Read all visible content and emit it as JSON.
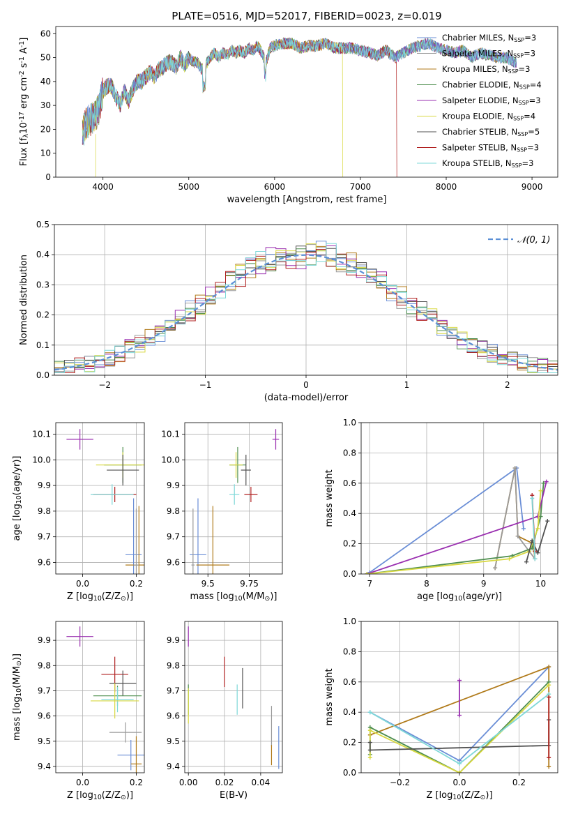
{
  "title": "PLATE=0516, MJD=52017, FIBERID=0023, z=0.019",
  "models": [
    {
      "name": "Chabrier MILES, N$_{SSP}$=3",
      "label_main": "Chabrier MILES, N",
      "label_tail": "=3",
      "color": "#6a8ed6"
    },
    {
      "name": "Salpeter MILES, N$_{SSP}$=3",
      "label_main": "Salpeter MILES, N",
      "label_tail": "=3",
      "color": "#9a9a9a"
    },
    {
      "name": "Kroupa MILES, N$_{SSP}$=3",
      "label_main": "Kroupa MILES, N",
      "label_tail": "=3",
      "color": "#b07a1a"
    },
    {
      "name": "Chabrier ELODIE, N$_{SSP}$=4",
      "label_main": "Chabrier ELODIE, N",
      "label_tail": "=4",
      "color": "#4f8f4f"
    },
    {
      "name": "Salpeter ELODIE, N$_{SSP}$=3",
      "label_main": "Salpeter ELODIE, N",
      "label_tail": "=3",
      "color": "#9a2fb0"
    },
    {
      "name": "Kroupa ELODIE, N$_{SSP}$=4",
      "label_main": "Kroupa ELODIE, N",
      "label_tail": "=4",
      "color": "#d8d840"
    },
    {
      "name": "Chabrier STELIB, N$_{SSP}$=5",
      "label_main": "Chabrier STELIB, N",
      "label_tail": "=5",
      "color": "#505050"
    },
    {
      "name": "Salpeter STELIB, N$_{SSP}$=3",
      "label_main": "Salpeter STELIB, N",
      "label_tail": "=3",
      "color": "#b02020"
    },
    {
      "name": "Kroupa STELIB, N$_{SSP}$=3",
      "label_main": "Kroupa STELIB, N",
      "label_tail": "=3",
      "color": "#7fd8d8"
    }
  ],
  "legend_subscript": "SSP",
  "chart_data": [
    {
      "id": "spectrum",
      "type": "line",
      "xlabel": "wavelength [Angstrom, rest frame]",
      "ylabel": "Flux [f$_\\lambda$10$^{-17}$ erg cm$^{-2}$ s$^{-1}$ A$^{-1}$]",
      "xlim": [
        3450,
        9300
      ],
      "ylim": [
        0,
        63
      ],
      "xticks": [
        4000,
        5000,
        6000,
        7000,
        8000,
        9000
      ],
      "yticks": [
        0,
        10,
        20,
        30,
        40,
        50,
        60
      ],
      "legend_position": "upper-right",
      "x": [
        3760,
        3800,
        3850,
        3900,
        3950,
        4000,
        4050,
        4100,
        4150,
        4200,
        4250,
        4300,
        4350,
        4400,
        4450,
        4500,
        4550,
        4600,
        4650,
        4700,
        4750,
        4800,
        4850,
        4900,
        4950,
        5000,
        5050,
        5100,
        5150,
        5200,
        5250,
        5300,
        5350,
        5400,
        5450,
        5500,
        5550,
        5600,
        5650,
        5700,
        5750,
        5800,
        5850,
        5900,
        5950,
        6000,
        6100,
        6200,
        6300,
        6400,
        6500,
        6600,
        6700,
        6800,
        6900,
        7000,
        7100,
        7200,
        7300,
        7400,
        7500,
        7600,
        7700,
        7800,
        7900,
        8000,
        8100,
        8200,
        8300,
        8400,
        8500,
        8600,
        8700,
        8800
      ],
      "y": [
        18,
        22,
        24,
        25,
        28,
        36,
        38,
        38,
        34,
        30,
        36,
        32,
        37,
        40,
        40,
        42,
        44,
        42,
        45,
        46,
        48,
        48,
        46,
        50,
        47,
        50,
        48,
        48,
        45,
        47,
        50,
        52,
        50,
        52,
        51,
        53,
        52,
        53,
        52,
        54,
        53,
        55,
        52,
        48,
        54,
        55,
        56,
        56,
        54,
        55,
        55,
        56,
        54,
        54,
        54,
        53,
        52,
        51,
        53,
        50,
        52,
        54,
        55,
        56,
        54,
        53,
        52,
        53,
        50,
        52,
        51,
        50,
        50,
        48
      ]
    },
    {
      "id": "residual-histogram",
      "type": "bar",
      "xlabel": "(data-model)/error",
      "ylabel": "Normed distribution",
      "xlim": [
        -2.5,
        2.5
      ],
      "ylim": [
        0,
        0.5
      ],
      "xticks": [
        -2,
        -1,
        0,
        1,
        2
      ],
      "yticks": [
        0.0,
        0.1,
        0.2,
        0.3,
        0.4,
        0.5
      ],
      "bin_width": 0.1,
      "legend": "$\\mathcal{N}(0,1)$",
      "legend_position": "upper-right",
      "reference_curve": "N(0,1)"
    },
    {
      "id": "age-vs-Z",
      "type": "scatter",
      "xlabel": "Z [log$_{10}$(Z/Z$_\\odot$)]",
      "ylabel": "age  [log$_{10}$(age/yr)]",
      "xlim": [
        -0.1,
        0.23
      ],
      "ylim": [
        9.555,
        10.145
      ],
      "xticks": [
        0.0,
        0.2
      ],
      "yticks": [
        9.6,
        9.7,
        9.8,
        9.9,
        10.0,
        10.1
      ],
      "points": [
        {
          "x": -0.01,
          "y": 10.08,
          "xerr": 0.05,
          "yerr": 0.04,
          "model": 4
        },
        {
          "x": 0.15,
          "y": 9.98,
          "xerr": 0.07,
          "yerr": 0.07,
          "model": 3
        },
        {
          "x": 0.15,
          "y": 9.98,
          "xerr": 0.1,
          "yerr": 0.05,
          "model": 5
        },
        {
          "x": 0.15,
          "y": 9.96,
          "xerr": 0.06,
          "yerr": 0.06,
          "model": 6
        },
        {
          "x": 0.12,
          "y": 9.865,
          "xerr": 0.08,
          "yerr": 0.03,
          "model": 7
        },
        {
          "x": 0.11,
          "y": 9.865,
          "xerr": 0.08,
          "yerr": 0.04,
          "model": 8
        },
        {
          "x": 0.19,
          "y": 9.63,
          "xerr": 0.03,
          "yerr": 0.22,
          "model": 0
        },
        {
          "x": 0.21,
          "y": 9.59,
          "xerr": 0.05,
          "yerr": 0.23,
          "model": 2
        },
        {
          "x": 0.2,
          "y": 9.59,
          "xerr": 0.01,
          "yerr": 0.22,
          "model": 1
        }
      ]
    },
    {
      "id": "age-vs-mass",
      "type": "scatter",
      "xlabel": "mass [log$_{10}$(M/M$_\\odot$)]",
      "ylabel": "",
      "xlim": [
        9.36,
        9.95
      ],
      "ylim": [
        9.555,
        10.145
      ],
      "xticks": [
        9.5,
        9.75
      ],
      "yticks": [
        9.6,
        9.7,
        9.8,
        9.9,
        10.0,
        10.1
      ],
      "points": [
        {
          "x": 9.91,
          "y": 10.08,
          "xerr": 0.02,
          "yerr": 0.04,
          "model": 4
        },
        {
          "x": 9.68,
          "y": 9.98,
          "xerr": 0.05,
          "yerr": 0.07,
          "model": 3
        },
        {
          "x": 9.67,
          "y": 9.98,
          "xerr": 0.04,
          "yerr": 0.05,
          "model": 5
        },
        {
          "x": 9.73,
          "y": 9.96,
          "xerr": 0.03,
          "yerr": 0.06,
          "model": 6
        },
        {
          "x": 9.76,
          "y": 9.865,
          "xerr": 0.04,
          "yerr": 0.03,
          "model": 7
        },
        {
          "x": 9.66,
          "y": 9.865,
          "xerr": 0.03,
          "yerr": 0.04,
          "model": 8
        },
        {
          "x": 9.44,
          "y": 9.63,
          "xerr": 0.05,
          "yerr": 0.22,
          "model": 0
        },
        {
          "x": 9.53,
          "y": 9.59,
          "xerr": 0.1,
          "yerr": 0.23,
          "model": 2
        },
        {
          "x": 9.41,
          "y": 9.59,
          "xerr": 0.01,
          "yerr": 0.22,
          "model": 1
        }
      ]
    },
    {
      "id": "mass-weight-vs-age",
      "type": "line",
      "xlabel": "age  [log$_{10}$(age/yr)]",
      "ylabel": "mass weight",
      "xlim": [
        6.85,
        10.3
      ],
      "ylim": [
        0.0,
        1.0
      ],
      "xticks": [
        7,
        8,
        9,
        10
      ],
      "yticks": [
        0.0,
        0.2,
        0.4,
        0.6,
        0.8,
        1.0
      ],
      "series": [
        {
          "model": 0,
          "x": [
            7.0,
            9.58,
            9.7
          ],
          "y": [
            0.01,
            0.7,
            0.3
          ]
        },
        {
          "model": 2,
          "x": [
            9.2,
            9.55,
            9.6,
            9.87,
            9.9
          ],
          "y": [
            0.04,
            0.7,
            0.25,
            0.2,
            0.1
          ]
        },
        {
          "model": 1,
          "x": [
            9.2,
            9.55,
            9.6,
            9.9
          ],
          "y": [
            0.04,
            0.7,
            0.25,
            0.1
          ]
        },
        {
          "model": 3,
          "x": [
            6.95,
            9.5,
            9.85,
            10.0,
            10.05
          ],
          "y": [
            0.0,
            0.12,
            0.17,
            0.38,
            0.6
          ]
        },
        {
          "model": 4,
          "x": [
            6.95,
            9.95,
            10.1
          ],
          "y": [
            0.0,
            0.38,
            0.61
          ]
        },
        {
          "model": 5,
          "x": [
            6.95,
            9.45,
            9.8,
            9.95,
            10.0
          ],
          "y": [
            0.0,
            0.1,
            0.15,
            0.3,
            0.55
          ]
        },
        {
          "model": 6,
          "x": [
            9.75,
            9.85,
            9.95,
            10.12
          ],
          "y": [
            0.08,
            0.22,
            0.14,
            0.35
          ]
        },
        {
          "model": 7,
          "x": [
            9.85,
            9.9
          ],
          "y": [
            0.52,
            0.15
          ]
        },
        {
          "model": 8,
          "x": [
            9.85,
            9.9
          ],
          "y": [
            0.5,
            0.1
          ]
        }
      ]
    },
    {
      "id": "mass-vs-Z",
      "type": "scatter",
      "xlabel": "Z [log$_{10}$(Z/Z$_\\odot$)]",
      "ylabel": "mass [log$_{10}$(M/M$_\\odot$)]",
      "xlim": [
        -0.1,
        0.23
      ],
      "ylim": [
        9.375,
        9.975
      ],
      "xticks": [
        0.0,
        0.2
      ],
      "yticks": [
        9.4,
        9.5,
        9.6,
        9.7,
        9.8,
        9.9
      ],
      "points": [
        {
          "x": -0.01,
          "y": 9.915,
          "xerr": 0.05,
          "yerr": 0.04,
          "model": 4
        },
        {
          "x": 0.12,
          "y": 9.765,
          "xerr": 0.05,
          "yerr": 0.07,
          "model": 7
        },
        {
          "x": 0.15,
          "y": 9.73,
          "xerr": 0.05,
          "yerr": 0.05,
          "model": 6
        },
        {
          "x": 0.13,
          "y": 9.68,
          "xerr": 0.09,
          "yerr": 0.04,
          "model": 3
        },
        {
          "x": 0.13,
          "y": 9.665,
          "xerr": 0.06,
          "yerr": 0.05,
          "model": 8
        },
        {
          "x": 0.12,
          "y": 9.66,
          "xerr": 0.09,
          "yerr": 0.07,
          "model": 5
        },
        {
          "x": 0.16,
          "y": 9.535,
          "xerr": 0.06,
          "yerr": 0.04,
          "model": 1
        },
        {
          "x": 0.18,
          "y": 9.445,
          "xerr": 0.05,
          "yerr": 0.06,
          "model": 0
        },
        {
          "x": 0.2,
          "y": 9.41,
          "xerr": 0.02,
          "yerr": 0.11,
          "model": 2
        }
      ]
    },
    {
      "id": "mass-vs-EBV",
      "type": "scatter",
      "xlabel": "E(B-V)",
      "ylabel": "",
      "xlim": [
        -0.002,
        0.052
      ],
      "ylim": [
        9.375,
        9.975
      ],
      "xticks": [
        0.0,
        0.02,
        0.04
      ],
      "yticks": [
        9.4,
        9.5,
        9.6,
        9.7,
        9.8,
        9.9
      ],
      "points": [
        {
          "x": 0.0,
          "y": 9.915,
          "yerr": 0.04,
          "model": 4
        },
        {
          "x": 0.0,
          "y": 9.665,
          "yerr": 0.06,
          "model": 3
        },
        {
          "x": 0.0,
          "y": 9.64,
          "yerr": 0.07,
          "model": 5
        },
        {
          "x": 0.02,
          "y": 9.775,
          "yerr": 0.06,
          "model": 7
        },
        {
          "x": 0.03,
          "y": 9.71,
          "yerr": 0.08,
          "model": 6
        },
        {
          "x": 0.027,
          "y": 9.665,
          "yerr": 0.06,
          "model": 8
        },
        {
          "x": 0.046,
          "y": 9.56,
          "yerr": 0.08,
          "model": 1
        },
        {
          "x": 0.05,
          "y": 9.475,
          "yerr": 0.085,
          "model": 0
        },
        {
          "x": 0.046,
          "y": 9.445,
          "yerr": 0.04,
          "model": 2
        }
      ]
    },
    {
      "id": "mass-weight-vs-Z",
      "type": "line",
      "xlabel": "Z [log$_{10}$(Z/Z$_\\odot$)]",
      "ylabel": "mass weight",
      "xlim": [
        -0.33,
        0.33
      ],
      "ylim": [
        0.0,
        1.0
      ],
      "xticks": [
        -0.2,
        0.0,
        0.2
      ],
      "yticks": [
        0.0,
        0.2,
        0.4,
        0.6,
        0.8,
        1.0
      ],
      "series": [
        {
          "model": 0,
          "x": [
            -0.3,
            0.0,
            0.3
          ],
          "y": [
            0.4,
            0.08,
            0.7
          ]
        },
        {
          "model": 2,
          "x": [
            -0.3,
            0.3,
            0.3
          ],
          "y": [
            0.25,
            0.7,
            0.04
          ]
        },
        {
          "model": 4,
          "x": [
            0.0,
            0.0
          ],
          "y": [
            0.61,
            0.38
          ]
        },
        {
          "model": 3,
          "x": [
            -0.3,
            -0.3,
            0.0,
            0.3
          ],
          "y": [
            0.12,
            0.3,
            0.0,
            0.6
          ]
        },
        {
          "model": 5,
          "x": [
            -0.3,
            -0.3,
            0.0,
            0.3
          ],
          "y": [
            0.1,
            0.28,
            0.0,
            0.58
          ]
        },
        {
          "model": 6,
          "x": [
            -0.3,
            -0.3,
            0.3,
            0.3
          ],
          "y": [
            0.2,
            0.15,
            0.18,
            0.35
          ]
        },
        {
          "model": 8,
          "x": [
            -0.3,
            0.0,
            0.3
          ],
          "y": [
            0.4,
            0.06,
            0.52
          ]
        },
        {
          "model": 7,
          "x": [
            0.3,
            0.3
          ],
          "y": [
            0.5,
            0.1
          ]
        }
      ]
    }
  ]
}
